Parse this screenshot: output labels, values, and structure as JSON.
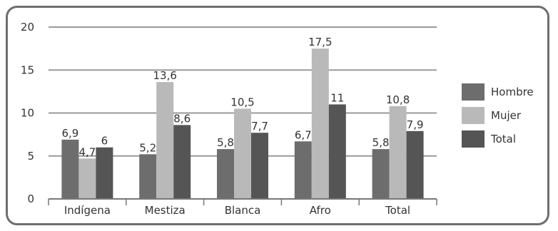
{
  "chart_data": {
    "type": "bar",
    "categories": [
      "Indígena",
      "Mestiza",
      "Blanca",
      "Afro",
      "Total"
    ],
    "series": [
      {
        "name": "Hombre",
        "values": [
          6.9,
          5.2,
          5.8,
          6.7,
          5.8
        ],
        "labels": [
          "6,9",
          "5,2",
          "5,8",
          "6,7",
          "5,8"
        ],
        "color": "#6d6d6d"
      },
      {
        "name": "Mujer",
        "values": [
          4.7,
          13.6,
          10.5,
          17.5,
          10.8
        ],
        "labels": [
          "4,7",
          "13,6",
          "10,5",
          "17,5",
          "10,8"
        ],
        "color": "#b9b9b9"
      },
      {
        "name": "Total",
        "values": [
          6,
          8.6,
          7.7,
          11,
          7.9
        ],
        "labels": [
          "6",
          "8,6",
          "7,7",
          "11",
          "7,9"
        ],
        "color": "#555555"
      }
    ],
    "ylim": [
      0,
      20
    ],
    "yticks": [
      "0",
      "5",
      "10",
      "15",
      "20"
    ],
    "ytick_values": [
      0,
      5,
      10,
      15,
      20
    ],
    "grid": true,
    "legend": "right"
  }
}
